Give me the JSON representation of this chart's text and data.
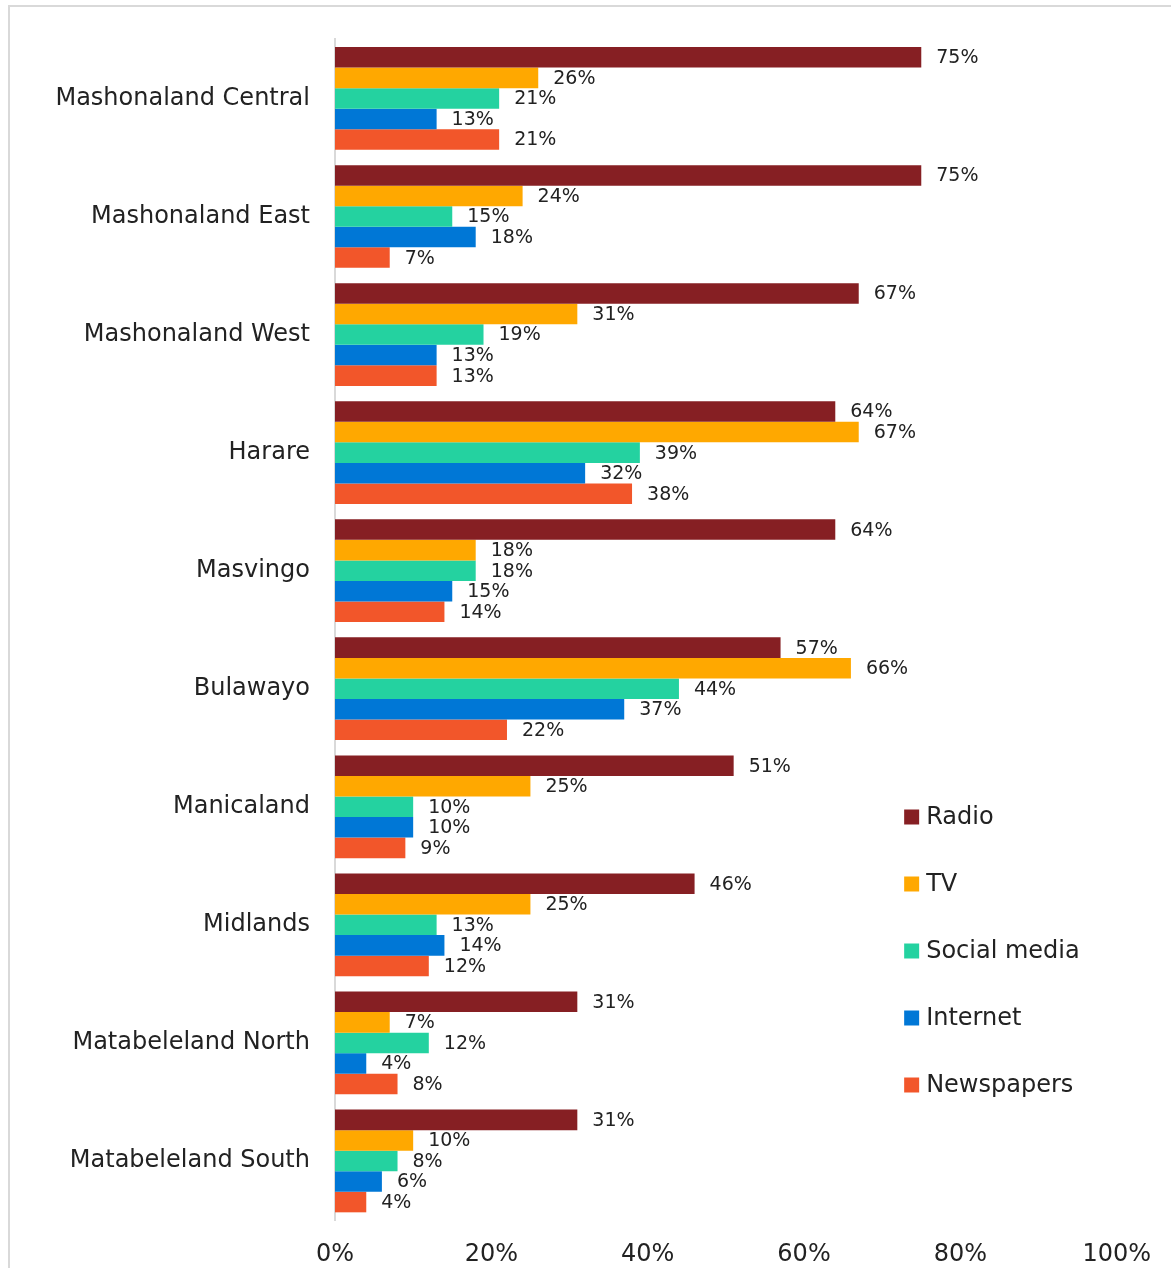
{
  "chart_data": {
    "type": "bar",
    "orientation": "horizontal",
    "categories": [
      "Mashonaland Central",
      "Mashonaland East",
      "Mashonaland West",
      "Harare",
      "Masvingo",
      "Bulawayo",
      "Manicaland",
      "Midlands",
      "Matabeleland North",
      "Matabeleland South"
    ],
    "series": [
      {
        "name": "Radio",
        "color": "#861f23",
        "values": [
          75,
          75,
          67,
          64,
          64,
          57,
          51,
          46,
          31,
          31
        ],
        "value_labels": [
          "75%",
          "75%",
          "67%",
          "64%",
          "64%",
          "57%",
          "51%",
          "46%",
          "31%",
          "31%"
        ]
      },
      {
        "name": "TV",
        "color": "#ffa800",
        "values": [
          26,
          24,
          31,
          67,
          18,
          66,
          25,
          25,
          7,
          10
        ],
        "value_labels": [
          "26%",
          "24%",
          "31%",
          "67%",
          "18%",
          "66%",
          "25%",
          "25%",
          "7%",
          "10%"
        ]
      },
      {
        "name": "Social media",
        "color": "#24d2a0",
        "values": [
          21,
          15,
          19,
          39,
          18,
          44,
          10,
          13,
          12,
          8
        ],
        "value_labels": [
          "21%",
          "15%",
          "19%",
          "39%",
          "18%",
          "44%",
          "10%",
          "13%",
          "12%",
          "8%"
        ]
      },
      {
        "name": "Internet",
        "color": "#0077d6",
        "values": [
          13,
          18,
          13,
          32,
          15,
          37,
          10,
          14,
          4,
          6
        ],
        "value_labels": [
          "13%",
          "18%",
          "13%",
          "32%",
          "15%",
          "37%",
          "10%",
          "14%",
          "4%",
          "6%"
        ]
      },
      {
        "name": "Newspapers",
        "color": "#f2562a",
        "values": [
          21,
          7,
          13,
          38,
          14,
          22,
          9,
          12,
          8,
          4
        ],
        "value_labels": [
          "21%",
          "7%",
          "13%",
          "38%",
          "14%",
          "22%",
          "9%",
          "12%",
          "8%",
          "4%"
        ]
      }
    ],
    "xlim": [
      0,
      100
    ],
    "xticks": [
      {
        "value": 0,
        "label": "0%"
      },
      {
        "value": 20,
        "label": "20%"
      },
      {
        "value": 40,
        "label": "40%"
      },
      {
        "value": 60,
        "label": "60%"
      },
      {
        "value": 80,
        "label": "80%"
      },
      {
        "value": 100,
        "label": "100%"
      }
    ],
    "grid": false,
    "legend": "bottom right"
  }
}
